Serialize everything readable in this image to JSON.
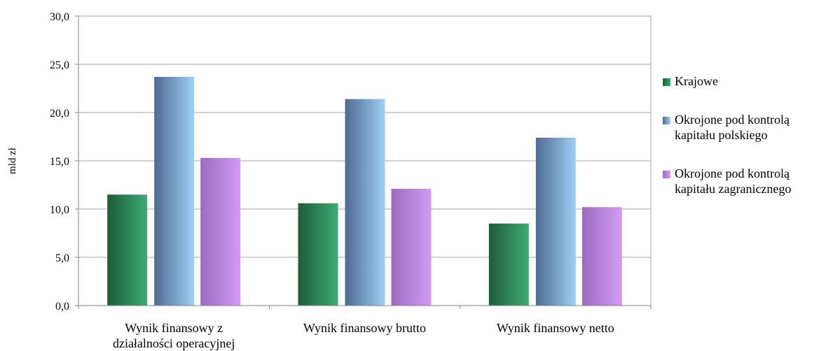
{
  "chart_data": {
    "type": "bar",
    "ylabel": "mld zł",
    "xlabel": "",
    "ylim": [
      0,
      30
    ],
    "yticks": [
      "0,0",
      "5,0",
      "10,0",
      "15,0",
      "20,0",
      "25,0",
      "30,0"
    ],
    "ytick_values": [
      0,
      5,
      10,
      15,
      20,
      25,
      30
    ],
    "grid": true,
    "legend_position": "right",
    "categories": [
      [
        "Wynik finansowy z",
        "działalności operacyjnej"
      ],
      [
        "Wynik finansowy brutto"
      ],
      [
        "Wynik finansowy netto"
      ]
    ],
    "series": [
      {
        "name": "Krajowe",
        "values": [
          11.5,
          10.6,
          8.5
        ],
        "color_dark": "#1f5c3a",
        "color_light": "#3cab72"
      },
      {
        "name": [
          "Okrojone pod kontrolą",
          "kapitału polskiego"
        ],
        "values": [
          23.7,
          21.4,
          17.4
        ],
        "color_dark": "#4d6c8f",
        "color_light": "#9fcff7"
      },
      {
        "name": [
          "Okrojone pod kontrolą",
          "kapitału zagranicznego"
        ],
        "values": [
          15.3,
          12.1,
          10.2
        ],
        "color_dark": "#9b6cbf",
        "color_light": "#d39af5"
      }
    ]
  }
}
